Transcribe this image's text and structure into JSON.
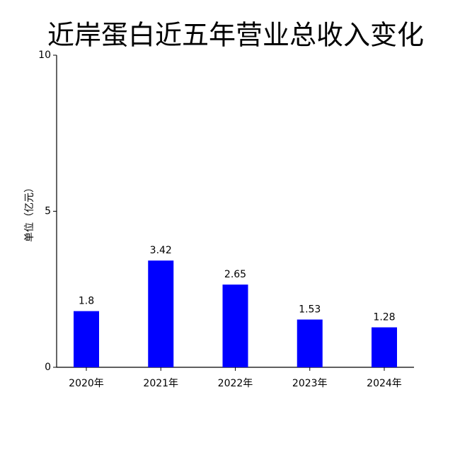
{
  "chart_data": {
    "type": "bar",
    "title": "近岸蛋白近五年营业总收入变化",
    "y_label": "单位（亿元）",
    "categories": [
      "2020年",
      "2021年",
      "2022年",
      "2023年",
      "2024年"
    ],
    "values": [
      1.8,
      3.42,
      2.65,
      1.53,
      1.28
    ],
    "color": "#0000ff",
    "ylim": [
      0,
      10
    ],
    "yticks": [
      0,
      5,
      10
    ],
    "grid": false
  }
}
